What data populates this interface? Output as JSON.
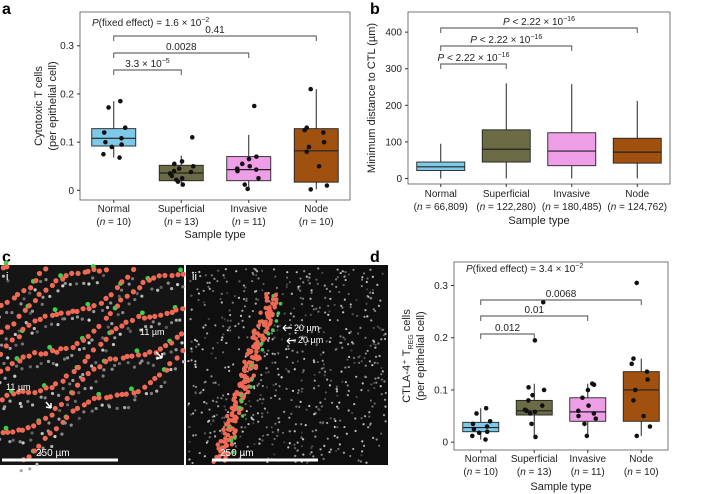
{
  "colors": {
    "normal": "#7ec8e8",
    "superficial": "#6b6b45",
    "invasive": "#ee9ee6",
    "node": "#a0500f",
    "scale_bar": "#ffffff",
    "cell_red": "#ef6a55",
    "cell_green": "#3dd04a"
  },
  "panels": {
    "a": {
      "letter": "a",
      "annotation_prefix": "P(fixed effect) = 1.6 × 10",
      "annotation_exp": "−2",
      "brackets": [
        {
          "text": "3.3 × 10",
          "exp": "−5"
        },
        {
          "text": "0.0028",
          "exp": ""
        },
        {
          "text": "0.41",
          "exp": ""
        }
      ]
    },
    "b": {
      "letter": "b",
      "brackets": [
        {
          "text": "P < 2.22 × 10",
          "exp": "−16"
        },
        {
          "text": "P < 2.22 × 10",
          "exp": "−16"
        },
        {
          "text": "P < 2.22 × 10",
          "exp": "−16"
        }
      ]
    },
    "c": {
      "letter": "c",
      "sub_i": "i",
      "sub_ii": "ii",
      "labels_i": [
        "11 µm",
        "11 µm"
      ],
      "scale_i": "250 µm",
      "labels_ii": [
        "20 µm",
        "20 µm"
      ],
      "scale_ii": "250 µm"
    },
    "d": {
      "letter": "d",
      "annotation_prefix": "P(fixed effect) = 3.4 × 10",
      "annotation_exp": "−2",
      "brackets": [
        {
          "text": "0.012",
          "exp": ""
        },
        {
          "text": "0.01",
          "exp": ""
        },
        {
          "text": "0.0068",
          "exp": ""
        }
      ]
    }
  },
  "chart_data": [
    {
      "id": "a",
      "type": "box",
      "ylabel_line1": "Cytotoxic T cells",
      "ylabel_line2": "(per epithelial cell)",
      "xlabel": "Sample type",
      "ylim": [
        -0.02,
        0.37
      ],
      "yticks": [
        "0",
        "0.1",
        "0.2",
        "0.3"
      ],
      "yticks_values": [
        0,
        0.1,
        0.2,
        0.3
      ],
      "categories": [
        "Normal",
        "Superficial",
        "Invasive",
        "Node"
      ],
      "n_labels": [
        "10",
        "13",
        "11",
        "10"
      ],
      "boxes": [
        {
          "q1": 0.092,
          "median": 0.108,
          "q3": 0.128,
          "whisker_low": 0.068,
          "whisker_high": 0.185
        },
        {
          "q1": 0.02,
          "median": 0.036,
          "q3": 0.052,
          "whisker_low": 0.01,
          "whisker_high": 0.072
        },
        {
          "q1": 0.02,
          "median": 0.043,
          "q3": 0.07,
          "whisker_low": 0.003,
          "whisker_high": 0.115
        },
        {
          "q1": 0.017,
          "median": 0.082,
          "q3": 0.128,
          "whisker_low": 0.002,
          "whisker_high": 0.21
        }
      ],
      "points": [
        [
          0.068,
          0.075,
          0.09,
          0.095,
          0.1,
          0.108,
          0.12,
          0.13,
          0.172,
          0.185
        ],
        [
          0.012,
          0.018,
          0.022,
          0.025,
          0.03,
          0.035,
          0.038,
          0.04,
          0.045,
          0.05,
          0.055,
          0.06,
          0.11
        ],
        [
          0.003,
          0.012,
          0.025,
          0.04,
          0.043,
          0.045,
          0.05,
          0.055,
          0.065,
          0.07,
          0.175
        ],
        [
          0.002,
          0.01,
          0.05,
          0.08,
          0.09,
          0.1,
          0.12,
          0.125,
          0.13,
          0.21
        ]
      ]
    },
    {
      "id": "b",
      "type": "box",
      "ylabel": "Minimum distance to CTL (µm)",
      "xlabel": "Sample type",
      "ylim": [
        -15,
        455
      ],
      "yticks": [
        "0",
        "100",
        "200",
        "300",
        "400"
      ],
      "yticks_values": [
        0,
        100,
        200,
        300,
        400
      ],
      "categories": [
        "Normal",
        "Superficial",
        "Invasive",
        "Node"
      ],
      "n_labels": [
        "66,809",
        "122,280",
        "180,485",
        "124,762"
      ],
      "boxes": [
        {
          "q1": 22,
          "median": 32,
          "q3": 45,
          "whisker_low": 0,
          "whisker_high": 95
        },
        {
          "q1": 45,
          "median": 80,
          "q3": 133,
          "whisker_low": 0,
          "whisker_high": 260
        },
        {
          "q1": 35,
          "median": 75,
          "q3": 125,
          "whisker_low": 0,
          "whisker_high": 258
        },
        {
          "q1": 42,
          "median": 72,
          "q3": 110,
          "whisker_low": 0,
          "whisker_high": 212
        }
      ]
    },
    {
      "id": "d",
      "type": "box",
      "ylabel_line1": "CTLA-4⁺ T",
      "ylabel_sub": "REG",
      "ylabel_line1_end": " cells",
      "ylabel_line2": "(per epithelial cell)",
      "xlabel": "Sample type",
      "ylim": [
        -0.015,
        0.345
      ],
      "yticks": [
        "0",
        "0.1",
        "0.2",
        "0.3"
      ],
      "yticks_values": [
        0,
        0.1,
        0.2,
        0.3
      ],
      "categories": [
        "Normal",
        "Superficial",
        "Invasive",
        "Node"
      ],
      "n_labels": [
        "10",
        "13",
        "11",
        "10"
      ],
      "boxes": [
        {
          "q1": 0.02,
          "median": 0.028,
          "q3": 0.038,
          "whisker_low": 0.005,
          "whisker_high": 0.065
        },
        {
          "q1": 0.052,
          "median": 0.06,
          "q3": 0.08,
          "whisker_low": 0.01,
          "whisker_high": 0.112
        },
        {
          "q1": 0.04,
          "median": 0.058,
          "q3": 0.085,
          "whisker_low": 0.012,
          "whisker_high": 0.112
        },
        {
          "q1": 0.04,
          "median": 0.1,
          "q3": 0.135,
          "whisker_low": 0.012,
          "whisker_high": 0.16
        }
      ],
      "points": [
        [
          0.005,
          0.012,
          0.018,
          0.02,
          0.025,
          0.03,
          0.035,
          0.04,
          0.055,
          0.065
        ],
        [
          0.01,
          0.035,
          0.055,
          0.058,
          0.06,
          0.062,
          0.07,
          0.08,
          0.09,
          0.1,
          0.105,
          0.195,
          0.268
        ],
        [
          0.012,
          0.035,
          0.045,
          0.05,
          0.055,
          0.06,
          0.07,
          0.085,
          0.1,
          0.11,
          0.112
        ],
        [
          0.012,
          0.03,
          0.05,
          0.08,
          0.1,
          0.12,
          0.135,
          0.15,
          0.16,
          0.305
        ]
      ]
    }
  ]
}
